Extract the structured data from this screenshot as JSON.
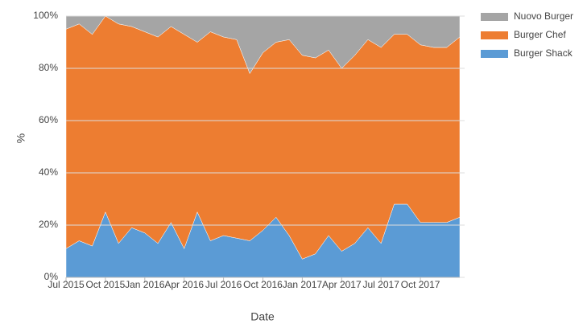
{
  "chart_data": {
    "type": "stacked-area",
    "x_label": "Date",
    "y_label": "%",
    "x": [
      "Jul 2015",
      null,
      null,
      "Oct 2015",
      null,
      null,
      "Jan 2016",
      null,
      null,
      "Apr 2016",
      null,
      null,
      "Jul 2016",
      null,
      null,
      "Oct 2016",
      null,
      null,
      "Jan 2017",
      null,
      null,
      "Apr 2017",
      null,
      null,
      "Jul 2017",
      null,
      null,
      "Oct 2017",
      null,
      null,
      null
    ],
    "series": [
      {
        "name": "Burger Shack",
        "color": "#5b9bd5",
        "values": [
          11,
          14,
          12,
          25,
          13,
          19,
          17,
          13,
          21,
          11,
          25,
          14,
          16,
          15,
          14,
          18,
          23,
          16,
          7,
          9,
          16,
          10,
          13,
          19,
          13,
          28,
          28,
          21,
          21,
          21,
          23
        ]
      },
      {
        "name": "Burger Chef",
        "color": "#ed7d31",
        "values": [
          84,
          83,
          81,
          75,
          84,
          77,
          77,
          79,
          75,
          82,
          65,
          80,
          76,
          76,
          64,
          68,
          67,
          75,
          78,
          75,
          71,
          70,
          72,
          72,
          75,
          65,
          65,
          68,
          67,
          67,
          69
        ]
      },
      {
        "name": "Nuovo Burger",
        "color": "#a5a5a5",
        "values": [
          5,
          3,
          7,
          0,
          3,
          4,
          6,
          8,
          4,
          7,
          10,
          6,
          8,
          9,
          22,
          14,
          10,
          9,
          15,
          16,
          13,
          20,
          15,
          9,
          12,
          7,
          7,
          11,
          12,
          12,
          8
        ]
      }
    ],
    "ylim": [
      0,
      100
    ],
    "yticks": [
      {
        "value": 0,
        "label": "0%"
      },
      {
        "value": 20,
        "label": "20%"
      },
      {
        "value": 40,
        "label": "40%"
      },
      {
        "value": 60,
        "label": "60%"
      },
      {
        "value": 80,
        "label": "80%"
      },
      {
        "value": 100,
        "label": "100%"
      }
    ],
    "grid": true,
    "legend": "right"
  }
}
